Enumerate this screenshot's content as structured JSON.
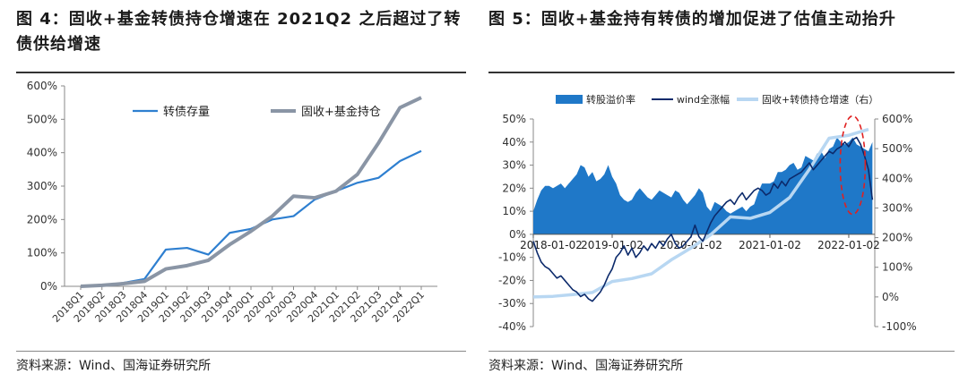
{
  "figure4": {
    "title": "图 4：固收+基金转债持仓增速在 2021Q2 之后超过了转债供给增速",
    "source": "资料来源：Wind、国海证券研究所"
  },
  "figure5": {
    "title": "图 5：固收+基金持有转债的增加促进了估值主动抬升",
    "source": "资料来源：Wind、国海证券研究所"
  },
  "chart_data": [
    {
      "type": "line",
      "title": "",
      "xlabel": "",
      "ylabel": "",
      "ylim": [
        0,
        600
      ],
      "y_tick_labels": [
        "0%",
        "100%",
        "200%",
        "300%",
        "400%",
        "500%",
        "600%"
      ],
      "categories": [
        "2018Q1",
        "2018Q2",
        "2018Q3",
        "2018Q4",
        "2019Q1",
        "2019Q2",
        "2019Q3",
        "2019Q4",
        "2020Q1",
        "2020Q2",
        "2020Q3",
        "2020Q4",
        "2021Q1",
        "2021Q2",
        "2021Q3",
        "2021Q4",
        "2022Q1"
      ],
      "legend_position": "top",
      "series": [
        {
          "name": "转债存量",
          "color": "#2e7fd0",
          "values": [
            0,
            2,
            10,
            22,
            110,
            115,
            95,
            160,
            172,
            200,
            210,
            260,
            285,
            310,
            325,
            375,
            405
          ]
        },
        {
          "name": "固收+基金持仓",
          "color": "#8a95a5",
          "values": [
            0,
            3,
            8,
            15,
            52,
            62,
            78,
            125,
            165,
            210,
            270,
            265,
            285,
            335,
            430,
            535,
            565
          ]
        }
      ]
    },
    {
      "type": "area",
      "title": "",
      "xlabel": "",
      "ylim_left": [
        -40,
        50
      ],
      "ylim_right": [
        -100,
        600
      ],
      "y_tick_labels_left": [
        "50%",
        "40%",
        "30%",
        "20%",
        "10%",
        "0%",
        "-10%",
        "-20%",
        "-30%",
        "-40%"
      ],
      "y_tick_labels_right": [
        "600%",
        "500%",
        "400%",
        "300%",
        "200%",
        "100%",
        "0%",
        "-100%"
      ],
      "right_axis_label": "",
      "x_tick_labels": [
        "2018-01-02",
        "2019-01-02",
        "2020-01-02",
        "2021-01-02",
        "2022-01-02"
      ],
      "x_ticks_years": [
        2018.0,
        2019.0,
        2020.0,
        2021.0,
        2022.0
      ],
      "xlim_years": [
        2018.0,
        2022.33
      ],
      "legend_position": "top",
      "annotation": "red-dashed-ellipse",
      "series": [
        {
          "name": "转股溢价率",
          "axis": "left",
          "color": "#1f78c8",
          "kind": "area",
          "x": [
            2018.0,
            2018.05,
            2018.1,
            2018.15,
            2018.2,
            2018.25,
            2018.3,
            2018.35,
            2018.4,
            2018.45,
            2018.5,
            2018.55,
            2018.6,
            2018.65,
            2018.7,
            2018.75,
            2018.8,
            2018.85,
            2018.9,
            2018.95,
            2019.0,
            2019.05,
            2019.1,
            2019.15,
            2019.2,
            2019.25,
            2019.3,
            2019.35,
            2019.4,
            2019.45,
            2019.5,
            2019.55,
            2019.6,
            2019.65,
            2019.7,
            2019.75,
            2019.8,
            2019.85,
            2019.9,
            2019.95,
            2020.0,
            2020.05,
            2020.1,
            2020.15,
            2020.2,
            2020.25,
            2020.3,
            2020.35,
            2020.4,
            2020.45,
            2020.5,
            2020.55,
            2020.6,
            2020.65,
            2020.7,
            2020.75,
            2020.8,
            2020.85,
            2020.9,
            2020.95,
            2021.0,
            2021.05,
            2021.1,
            2021.15,
            2021.2,
            2021.25,
            2021.3,
            2021.35,
            2021.4,
            2021.45,
            2021.5,
            2021.55,
            2021.6,
            2021.65,
            2021.7,
            2021.75,
            2021.8,
            2021.85,
            2021.9,
            2021.95,
            2022.0,
            2022.05,
            2022.1,
            2022.15,
            2022.2,
            2022.25,
            2022.3
          ],
          "values": [
            10,
            15,
            19,
            21,
            21,
            20,
            21,
            22,
            20,
            22,
            24,
            26,
            30,
            29,
            25,
            27,
            23,
            24,
            26,
            30,
            25,
            22,
            17,
            15,
            14,
            15,
            18,
            20,
            18,
            16,
            15,
            17,
            19,
            18,
            17,
            16,
            19,
            18,
            15,
            13,
            15,
            17,
            20,
            18,
            12,
            10,
            14,
            13,
            12,
            10,
            9,
            10,
            11,
            12,
            10,
            12,
            13,
            18,
            22,
            22,
            22,
            23,
            27,
            27,
            28,
            30,
            31,
            28,
            29,
            34,
            33,
            32,
            35,
            36,
            33,
            37,
            38,
            42,
            40,
            39,
            40,
            42,
            39,
            38,
            37,
            36,
            40
          ]
        },
        {
          "name": "wind全涨幅",
          "axis": "left",
          "color": "#0c2a6b",
          "kind": "line",
          "x": [
            2018.0,
            2018.05,
            2018.1,
            2018.15,
            2018.2,
            2018.25,
            2018.3,
            2018.35,
            2018.4,
            2018.45,
            2018.5,
            2018.55,
            2018.6,
            2018.65,
            2018.7,
            2018.75,
            2018.8,
            2018.85,
            2018.9,
            2018.95,
            2019.0,
            2019.05,
            2019.1,
            2019.15,
            2019.2,
            2019.25,
            2019.3,
            2019.35,
            2019.4,
            2019.45,
            2019.5,
            2019.55,
            2019.6,
            2019.65,
            2019.7,
            2019.75,
            2019.8,
            2019.85,
            2019.9,
            2019.95,
            2020.0,
            2020.05,
            2020.1,
            2020.15,
            2020.2,
            2020.25,
            2020.3,
            2020.35,
            2020.4,
            2020.45,
            2020.5,
            2020.55,
            2020.6,
            2020.65,
            2020.7,
            2020.75,
            2020.8,
            2020.85,
            2020.9,
            2020.95,
            2021.0,
            2021.05,
            2021.1,
            2021.15,
            2021.2,
            2021.25,
            2021.3,
            2021.35,
            2021.4,
            2021.45,
            2021.5,
            2021.55,
            2021.6,
            2021.65,
            2021.7,
            2021.75,
            2021.8,
            2021.85,
            2021.9,
            2021.95,
            2022.0,
            2022.05,
            2022.1,
            2022.15,
            2022.2,
            2022.25,
            2022.3
          ],
          "values": [
            -3,
            -8,
            -12,
            -14,
            -15,
            -17,
            -19,
            -18,
            -20,
            -22,
            -24,
            -25,
            -27,
            -26,
            -28,
            -29,
            -27,
            -25,
            -22,
            -18,
            -15,
            -10,
            -8,
            -5,
            -9,
            -6,
            -10,
            -8,
            -5,
            -7,
            -4,
            -6,
            -3,
            -5,
            -2,
            0,
            -4,
            -6,
            -5,
            -3,
            -1,
            4,
            -1,
            -3,
            1,
            5,
            8,
            10,
            12,
            14,
            15,
            13,
            16,
            18,
            15,
            17,
            19,
            20,
            19,
            17,
            18,
            22,
            20,
            23,
            21,
            24,
            25,
            26,
            27,
            29,
            31,
            28,
            30,
            32,
            34,
            36,
            35,
            37,
            38,
            40,
            38,
            41,
            42,
            39,
            34,
            28,
            15
          ]
        },
        {
          "name": "固收+转债持仓增速（右）",
          "axis": "right",
          "color": "#b8d7f2",
          "kind": "line",
          "x": [
            2018.0,
            2018.25,
            2018.5,
            2018.75,
            2019.0,
            2019.25,
            2019.5,
            2019.75,
            2020.0,
            2020.25,
            2020.5,
            2020.75,
            2021.0,
            2021.25,
            2021.5,
            2021.75,
            2022.0,
            2022.25
          ],
          "values": [
            0,
            2,
            8,
            15,
            52,
            62,
            78,
            125,
            165,
            210,
            270,
            265,
            285,
            335,
            430,
            535,
            545,
            565
          ]
        }
      ]
    }
  ]
}
